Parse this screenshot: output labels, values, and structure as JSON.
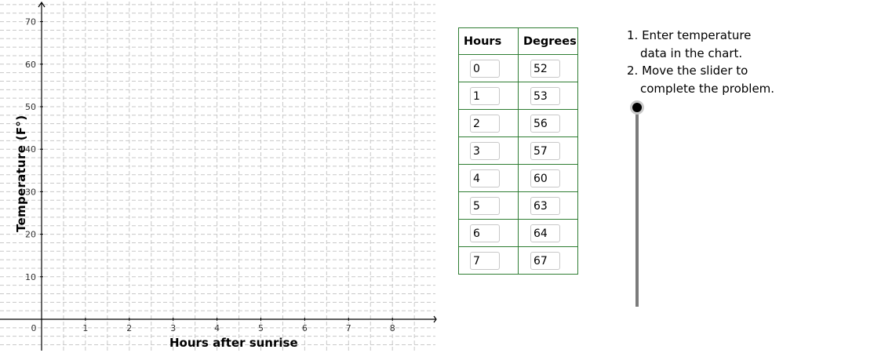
{
  "graph": {
    "x_axis_label": "Hours after sunrise",
    "y_axis_label": "Temperature  (F°)",
    "x_ticks": [
      "0",
      "1",
      "2",
      "3",
      "4",
      "5",
      "6",
      "7",
      "8"
    ],
    "y_ticks": [
      "10",
      "20",
      "30",
      "40",
      "50",
      "60",
      "70"
    ]
  },
  "table": {
    "header_hours": "Hours",
    "header_degrees": "Degrees",
    "rows": [
      {
        "hours": "0",
        "degrees": "52"
      },
      {
        "hours": "1",
        "degrees": "53"
      },
      {
        "hours": "2",
        "degrees": "56"
      },
      {
        "hours": "3",
        "degrees": "57"
      },
      {
        "hours": "4",
        "degrees": "60"
      },
      {
        "hours": "5",
        "degrees": "63"
      },
      {
        "hours": "6",
        "degrees": "64"
      },
      {
        "hours": "7",
        "degrees": "67"
      }
    ]
  },
  "instructions": {
    "line1": "1. Enter temperature",
    "line2": "data in the chart.",
    "line3": "2. Move the slider to",
    "line4": "complete the problem."
  },
  "slider": {
    "position": 0
  },
  "colors": {
    "table_border": "#2e7d32",
    "grid": "#c8c8c8",
    "slider_track": "#7b7b7b"
  }
}
